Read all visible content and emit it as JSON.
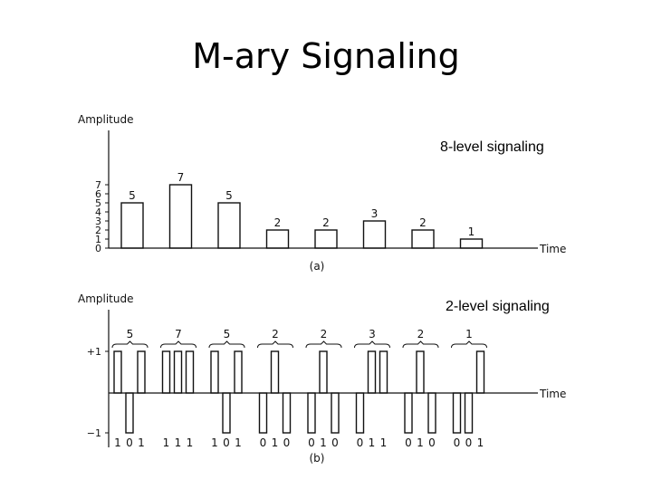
{
  "slide": {
    "title": "M-ary Signaling"
  },
  "panel_a": {
    "y_axis_label": "Amplitude",
    "x_axis_label": "Time",
    "caption": "(a)",
    "callout": "8-level signaling",
    "y_ticks": [
      "0",
      "1",
      "2",
      "3",
      "4",
      "5",
      "6",
      "7"
    ],
    "levels": [
      5,
      7,
      5,
      2,
      2,
      3,
      2,
      1
    ]
  },
  "panel_b": {
    "y_axis_label": "Amplitude",
    "x_axis_label": "Time",
    "caption": "(b)",
    "callout": "2-level signaling",
    "y_ticks": [
      "+1",
      "−1"
    ],
    "group_labels": [
      "5",
      "7",
      "5",
      "2",
      "2",
      "3",
      "2",
      "1"
    ],
    "bit_groups": [
      "1 0 1",
      "1 1 1",
      "1 0 1",
      "0 1 0",
      "0 1 0",
      "0 1 1",
      "0 1 0",
      "0 0 1"
    ]
  },
  "colors": {
    "ink": "#111111",
    "page": "#ffffff"
  }
}
